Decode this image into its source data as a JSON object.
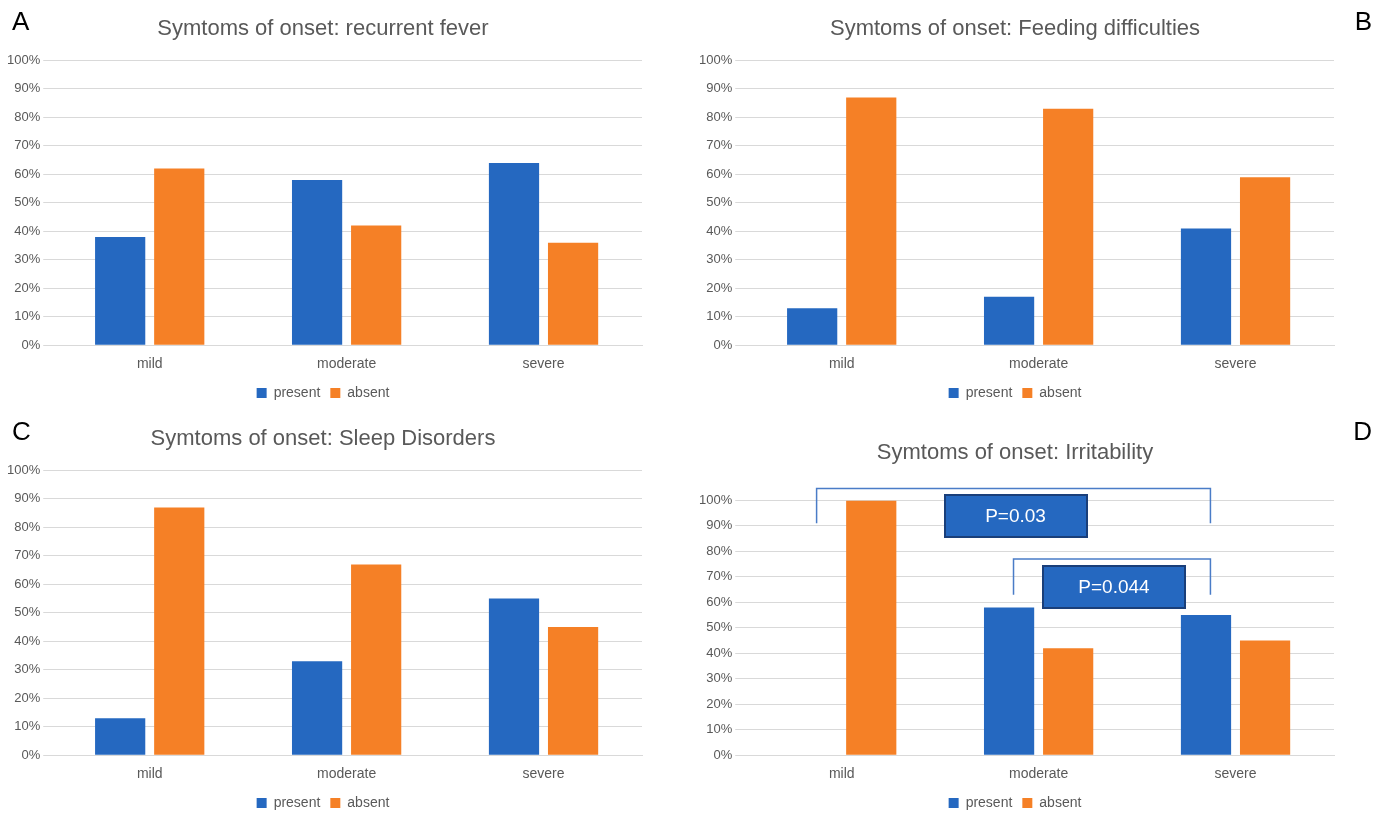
{
  "chart_data": [
    {
      "type": "bar",
      "title": "Symtoms of onset: recurrent fever",
      "categories": [
        "mild",
        "moderate",
        "severe"
      ],
      "series": [
        {
          "name": "present",
          "color": "#2568c0",
          "values": [
            38,
            58,
            64
          ]
        },
        {
          "name": "absent",
          "color": "#f58026",
          "values": [
            62,
            42,
            36
          ]
        }
      ],
      "ylim": [
        0,
        100
      ],
      "yticks": [
        {
          "value": 0,
          "label": "0%"
        },
        {
          "value": 10,
          "label": "10%"
        },
        {
          "value": 20,
          "label": "20%"
        },
        {
          "value": 30,
          "label": "30%"
        },
        {
          "value": 40,
          "label": "40%"
        },
        {
          "value": 50,
          "label": "50%"
        },
        {
          "value": 60,
          "label": "60%"
        },
        {
          "value": 70,
          "label": "70%"
        },
        {
          "value": 80,
          "label": "80%"
        },
        {
          "value": 90,
          "label": "90%"
        },
        {
          "value": 100,
          "label": "100%"
        }
      ],
      "grid": "y",
      "legend": "bottom",
      "annotations": [
        "A"
      ]
    },
    {
      "type": "bar",
      "title": "Symtoms of onset: Feeding difficulties",
      "categories": [
        "mild",
        "moderate",
        "severe"
      ],
      "series": [
        {
          "name": "present",
          "color": "#2568c0",
          "values": [
            13,
            17,
            41
          ]
        },
        {
          "name": "absent",
          "color": "#f58026",
          "values": [
            87,
            83,
            59
          ]
        }
      ],
      "ylim": [
        0,
        100
      ],
      "yticks": [
        {
          "value": 0,
          "label": "0%"
        },
        {
          "value": 10,
          "label": "10%"
        },
        {
          "value": 20,
          "label": "20%"
        },
        {
          "value": 30,
          "label": "30%"
        },
        {
          "value": 40,
          "label": "40%"
        },
        {
          "value": 50,
          "label": "50%"
        },
        {
          "value": 60,
          "label": "60%"
        },
        {
          "value": 70,
          "label": "70%"
        },
        {
          "value": 80,
          "label": "80%"
        },
        {
          "value": 90,
          "label": "90%"
        },
        {
          "value": 100,
          "label": "100%"
        }
      ],
      "grid": "y",
      "legend": "bottom",
      "annotations": [
        "B"
      ]
    },
    {
      "type": "bar",
      "title": "Symtoms of onset: Sleep Disorders",
      "categories": [
        "mild",
        "moderate",
        "severe"
      ],
      "series": [
        {
          "name": "present",
          "color": "#2568c0",
          "values": [
            13,
            33,
            55
          ]
        },
        {
          "name": "absent",
          "color": "#f58026",
          "values": [
            87,
            67,
            45
          ]
        }
      ],
      "ylim": [
        0,
        100
      ],
      "yticks": [
        {
          "value": 0,
          "label": "0%"
        },
        {
          "value": 10,
          "label": "10%"
        },
        {
          "value": 20,
          "label": "20%"
        },
        {
          "value": 30,
          "label": "30%"
        },
        {
          "value": 40,
          "label": "40%"
        },
        {
          "value": 50,
          "label": "50%"
        },
        {
          "value": 60,
          "label": "60%"
        },
        {
          "value": 70,
          "label": "70%"
        },
        {
          "value": 80,
          "label": "80%"
        },
        {
          "value": 90,
          "label": "90%"
        },
        {
          "value": 100,
          "label": "100%"
        }
      ],
      "grid": "y",
      "legend": "bottom",
      "annotations": [
        "C"
      ]
    },
    {
      "type": "bar",
      "title": "Symtoms of onset: Irritability",
      "categories": [
        "mild",
        "moderate",
        "severe"
      ],
      "series": [
        {
          "name": "present",
          "color": "#2568c0",
          "values": [
            0,
            58,
            55
          ]
        },
        {
          "name": "absent",
          "color": "#f58026",
          "values": [
            100,
            42,
            45
          ]
        }
      ],
      "ylim": [
        0,
        100
      ],
      "yticks": [
        {
          "value": 0,
          "label": "0%"
        },
        {
          "value": 10,
          "label": "10%"
        },
        {
          "value": 20,
          "label": "20%"
        },
        {
          "value": 30,
          "label": "30%"
        },
        {
          "value": 40,
          "label": "40%"
        },
        {
          "value": 50,
          "label": "50%"
        },
        {
          "value": 60,
          "label": "60%"
        },
        {
          "value": 70,
          "label": "70%"
        },
        {
          "value": 80,
          "label": "80%"
        },
        {
          "value": 90,
          "label": "90%"
        },
        {
          "value": 100,
          "label": "100%"
        }
      ],
      "grid": "y",
      "legend": "bottom",
      "annotations": [
        "D",
        "P=0.03",
        "P=0.044"
      ]
    }
  ]
}
